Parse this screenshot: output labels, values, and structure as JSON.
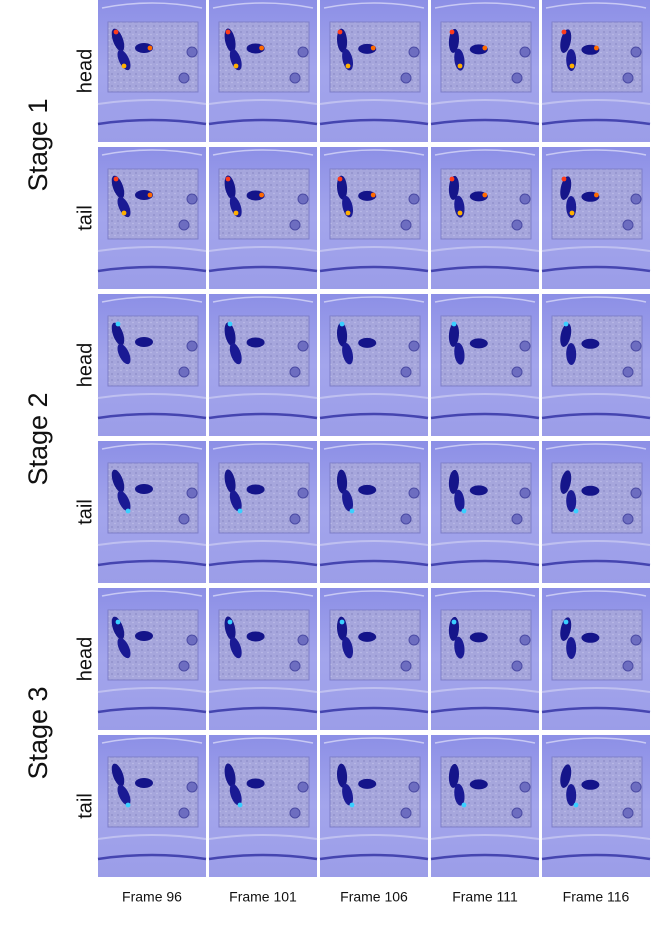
{
  "stages": [
    {
      "label": "Stage 1",
      "rows": [
        "head",
        "tail"
      ]
    },
    {
      "label": "Stage 2",
      "rows": [
        "head",
        "tail"
      ]
    },
    {
      "label": "Stage 3",
      "rows": [
        "head",
        "tail"
      ]
    }
  ],
  "frames": [
    "Frame 96",
    "Frame 101",
    "Frame 106",
    "Frame 111",
    "Frame 116"
  ]
}
